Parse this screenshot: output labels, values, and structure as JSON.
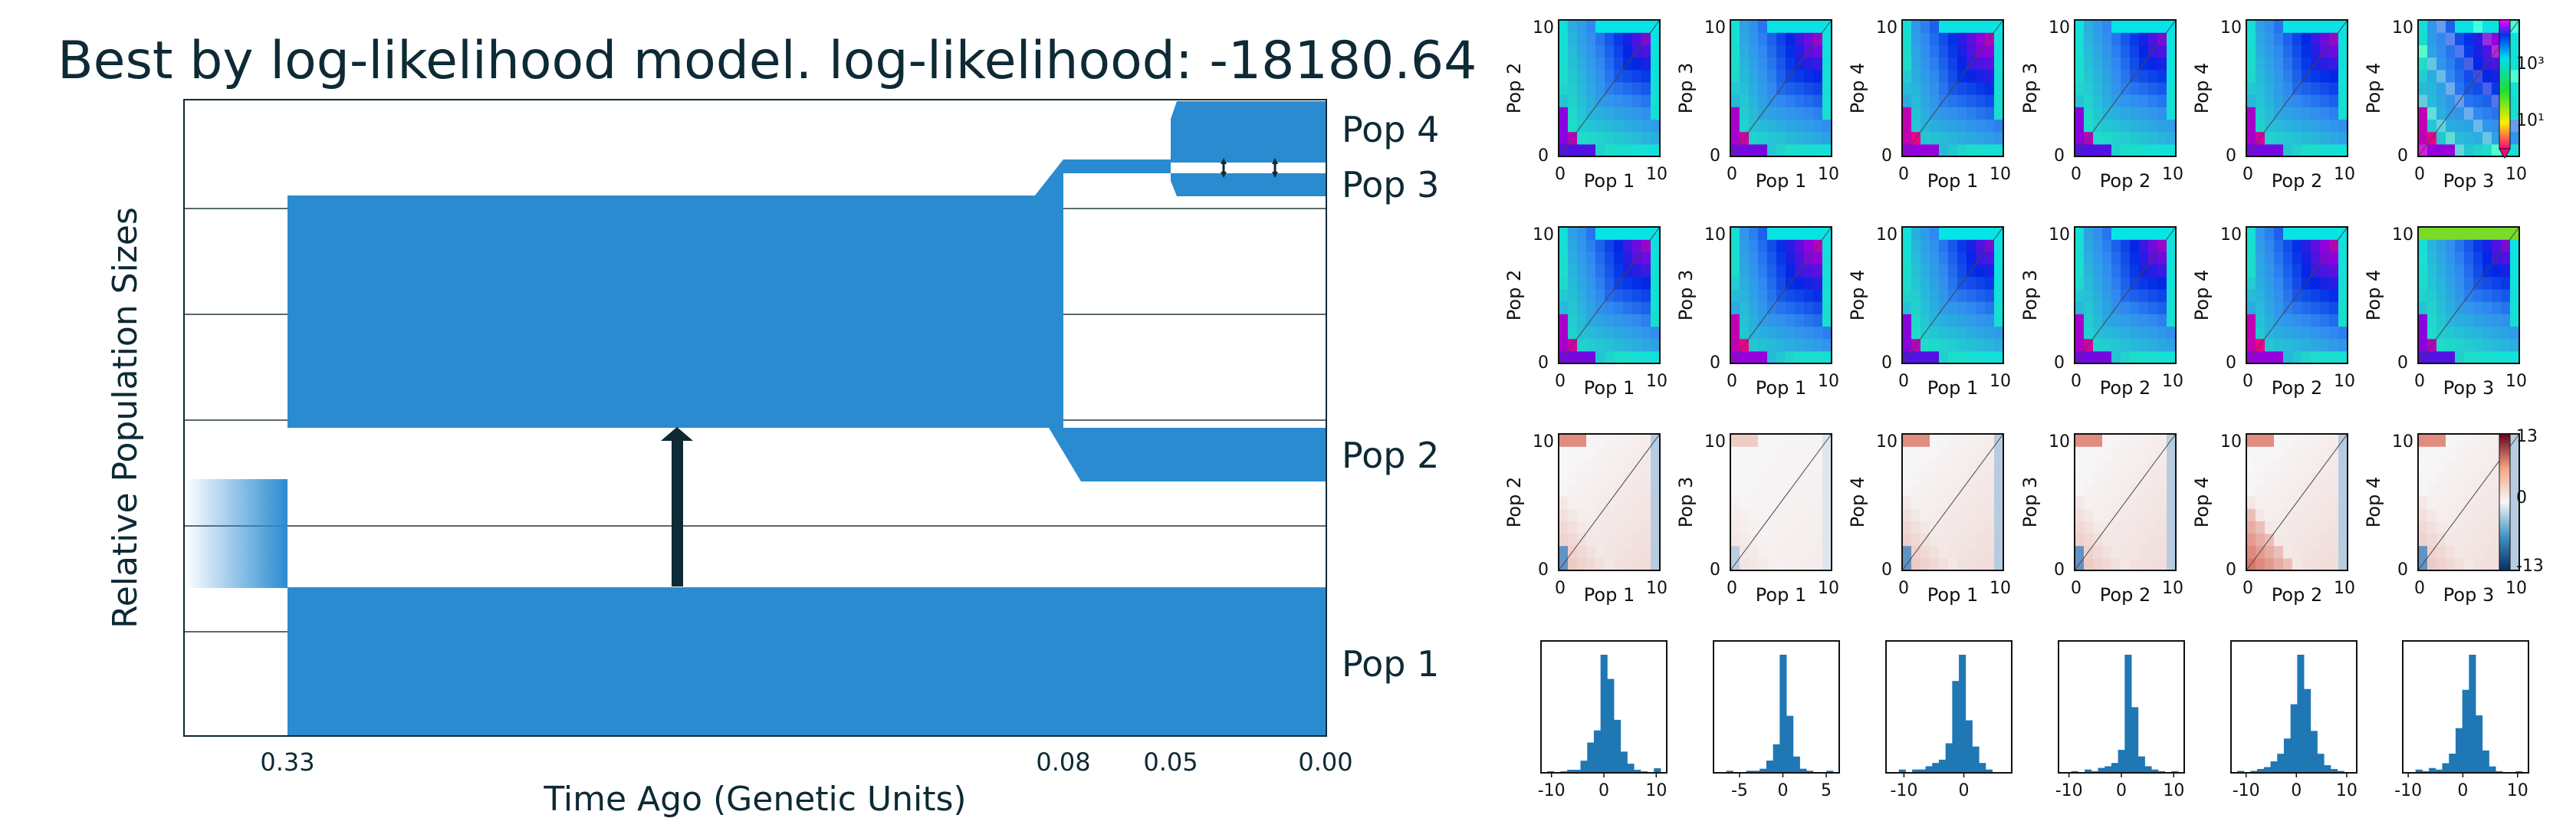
{
  "title": "Best by log-likelihood model. log-likelihood: -18180.64",
  "colors": {
    "population": "#2a8bd0",
    "migration_arrow": "#0d2a35",
    "axes": "#0d2a35",
    "grid": "#5a6b70"
  },
  "chart_data": [
    {
      "type": "area",
      "name": "population-history",
      "xlabel": "Time Ago (Genetic Units)",
      "ylabel": "Relative Population Sizes",
      "x_ticks": [
        "0.33",
        "0.08",
        "0.05",
        "0.00"
      ],
      "populations": [
        "Pop 1",
        "Pop 2",
        "Pop 3",
        "Pop 4"
      ],
      "events": [
        {
          "label": "0.33",
          "description": "ancestral split"
        },
        {
          "label": "0.08",
          "description": "split of Pop 2"
        },
        {
          "label": "0.05",
          "description": "split of Pop 3 and Pop 4"
        }
      ],
      "migrations": [
        {
          "from": "Pop 1",
          "to": "Pop 2",
          "period": "0.33-0.08"
        },
        {
          "from": "Pop 3",
          "to": "Pop 4",
          "period": "0.05-0.00"
        },
        {
          "from": "Pop 4",
          "to": "Pop 3",
          "period": "0.05-0.00"
        }
      ]
    },
    {
      "type": "heatmap",
      "name": "sfs-panels",
      "rows": [
        {
          "row": "data",
          "panels": [
            {
              "ylabel": "Pop 2",
              "xlabel": "Pop 1"
            },
            {
              "ylabel": "Pop 3",
              "xlabel": "Pop 1"
            },
            {
              "ylabel": "Pop 4",
              "xlabel": "Pop 1"
            },
            {
              "ylabel": "Pop 3",
              "xlabel": "Pop 2"
            },
            {
              "ylabel": "Pop 4",
              "xlabel": "Pop 2"
            },
            {
              "ylabel": "Pop 4",
              "xlabel": "Pop 3"
            }
          ],
          "ticks": [
            "0",
            "10"
          ],
          "colorbar_ticks": [
            "10³",
            "10¹"
          ]
        },
        {
          "row": "model",
          "panels": [
            {
              "ylabel": "Pop 2",
              "xlabel": "Pop 1"
            },
            {
              "ylabel": "Pop 3",
              "xlabel": "Pop 1"
            },
            {
              "ylabel": "Pop 4",
              "xlabel": "Pop 1"
            },
            {
              "ylabel": "Pop 3",
              "xlabel": "Pop 2"
            },
            {
              "ylabel": "Pop 4",
              "xlabel": "Pop 2"
            },
            {
              "ylabel": "Pop 4",
              "xlabel": "Pop 3"
            }
          ],
          "ticks": [
            "0",
            "10"
          ]
        },
        {
          "row": "residuals",
          "panels": [
            {
              "ylabel": "Pop 2",
              "xlabel": "Pop 1"
            },
            {
              "ylabel": "Pop 3",
              "xlabel": "Pop 1"
            },
            {
              "ylabel": "Pop 4",
              "xlabel": "Pop 1"
            },
            {
              "ylabel": "Pop 3",
              "xlabel": "Pop 2"
            },
            {
              "ylabel": "Pop 4",
              "xlabel": "Pop 2"
            },
            {
              "ylabel": "Pop 4",
              "xlabel": "Pop 3"
            }
          ],
          "ticks": [
            "0",
            "10"
          ],
          "colorbar_ticks": [
            "13",
            "0",
            "-13"
          ]
        }
      ]
    },
    {
      "type": "bar",
      "name": "residual-histograms",
      "panels": [
        {
          "ticks": [
            "-10",
            "0",
            "10"
          ],
          "xlim": [
            -12,
            12
          ]
        },
        {
          "ticks": [
            "-5",
            "0",
            "5"
          ],
          "xlim": [
            -8,
            6.5
          ]
        },
        {
          "ticks": [
            "-10",
            "0"
          ],
          "xlim": [
            -13,
            8
          ]
        },
        {
          "ticks": [
            "-10",
            "0",
            "10"
          ],
          "xlim": [
            -12,
            12
          ]
        },
        {
          "ticks": [
            "-10",
            "0",
            "10"
          ],
          "xlim": [
            -13,
            12
          ]
        },
        {
          "ticks": [
            "-10",
            "0",
            "10"
          ],
          "xlim": [
            -11,
            12
          ]
        }
      ]
    }
  ]
}
